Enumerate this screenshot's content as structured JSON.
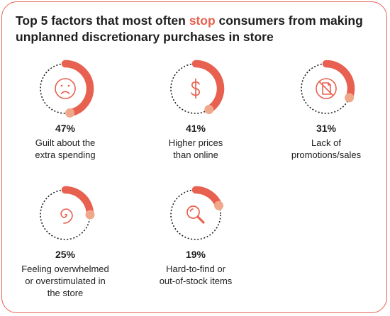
{
  "title": {
    "before": "Top 5 factors that most often ",
    "highlight": "stop",
    "after": " consumers from making unplanned discretionary purchases in store"
  },
  "colors": {
    "accent": "#e8604f",
    "accent_end": "#f0a88a",
    "text": "#1e1e1e",
    "dots": "#1e1e1e"
  },
  "chart_data": {
    "type": "radial-progress",
    "unit": "%",
    "items": [
      {
        "value": 47,
        "pct_label": "47%",
        "label": "Guilt about the\nextra spending",
        "icon": "sad-face-icon"
      },
      {
        "value": 41,
        "pct_label": "41%",
        "label": "Higher prices\nthan online",
        "icon": "dollar-sign-icon"
      },
      {
        "value": 31,
        "pct_label": "31%",
        "label": "Lack of\npromotions/sales",
        "icon": "no-coupon-icon"
      },
      {
        "value": 25,
        "pct_label": "25%",
        "label": "Feeling overwhelmed\nor overstimulated in\nthe store",
        "icon": "spiral-icon"
      },
      {
        "value": 19,
        "pct_label": "19%",
        "label": "Hard-to-find or\nout-of-stock items",
        "icon": "magnifier-icon"
      }
    ]
  }
}
